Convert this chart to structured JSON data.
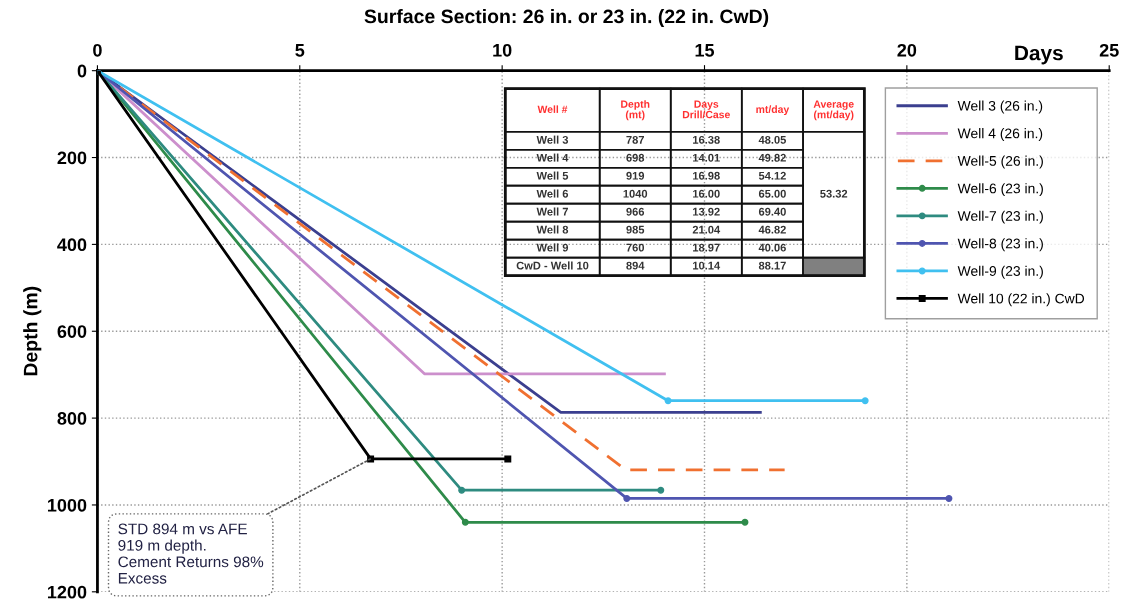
{
  "chart_data": {
    "type": "line",
    "title": "Surface Section: 26 in. or 23 in. (22 in. CwD)",
    "xlabel": "Days",
    "ylabel": "Depth (m)",
    "xlim": [
      0,
      25
    ],
    "xticks": [
      0,
      5,
      10,
      15,
      20,
      25
    ],
    "ylim": [
      1200,
      0
    ],
    "yticks": [
      0,
      200,
      400,
      600,
      800,
      1000,
      1200
    ],
    "grid": true,
    "legend": "top right",
    "line_style": "solid",
    "series": [
      {
        "name": "Well 3 (26 in.)",
        "color": "#3b3f8f",
        "x": [
          0,
          11.45,
          16.38
        ],
        "values": [
          0,
          787,
          787
        ],
        "marker": "none"
      },
      {
        "name": "Well 4 (26 in.)",
        "color": "#cc8fcc",
        "x": [
          0,
          8.08,
          14.01
        ],
        "values": [
          0,
          698,
          698
        ],
        "marker": "none"
      },
      {
        "name": "Well-5 (26 in.)",
        "color": "#f07030",
        "x": [
          0,
          13.05,
          16.98
        ],
        "values": [
          0,
          919,
          919
        ],
        "marker": "none",
        "line_style": "dashed"
      },
      {
        "name": "Well-6 (23 in.)",
        "color": "#2e8b4a",
        "x": [
          0,
          9.09,
          16.0
        ],
        "values": [
          0,
          1040,
          1040
        ],
        "marker": "circle"
      },
      {
        "name": "Well-7 (23 in.)",
        "color": "#2e8b80",
        "x": [
          0,
          9.0,
          13.92
        ],
        "values": [
          0,
          966,
          966
        ],
        "marker": "circle"
      },
      {
        "name": "Well-8 (23 in.)",
        "color": "#4f55b0",
        "x": [
          0,
          13.08,
          21.04
        ],
        "values": [
          0,
          985,
          985
        ],
        "marker": "circle"
      },
      {
        "name": "Well-9 (23 in.)",
        "color": "#40c0f0",
        "x": [
          0,
          14.1,
          18.97
        ],
        "values": [
          0,
          760,
          760
        ],
        "marker": "circle"
      },
      {
        "name": "Well 10 (22 in.) CwD",
        "color": "#000000",
        "x": [
          0,
          6.75,
          10.14
        ],
        "values": [
          0,
          894,
          894
        ],
        "marker": "square"
      }
    ],
    "annotations": [
      {
        "text": "STD 894 m vs AFE\n919 m depth.\nCement Returns 98%\nExcess",
        "x": 6.75,
        "y": 894
      },
      "Well #\tDepth\n(mt)\tDays\nDrill/Case\tmt/day\tAverage\n(mt/day)",
      "Well 3\t787\t16.38\t48.05\t",
      "Well 4\t698\t14.01\t49.82\t",
      "Well 5\t919\t16.98\t54.12\t",
      "Well 6\t1040\t16.00\t65.00\t53.32",
      "Well 7\t966\t13.92\t69.40\t",
      "Well 8\t985\t21.04\t46.82\t",
      "Well 9\t760\t18.97\t40.06\t",
      "CwD - Well 10\t894\t10.14\t88.17\t"
    ]
  }
}
